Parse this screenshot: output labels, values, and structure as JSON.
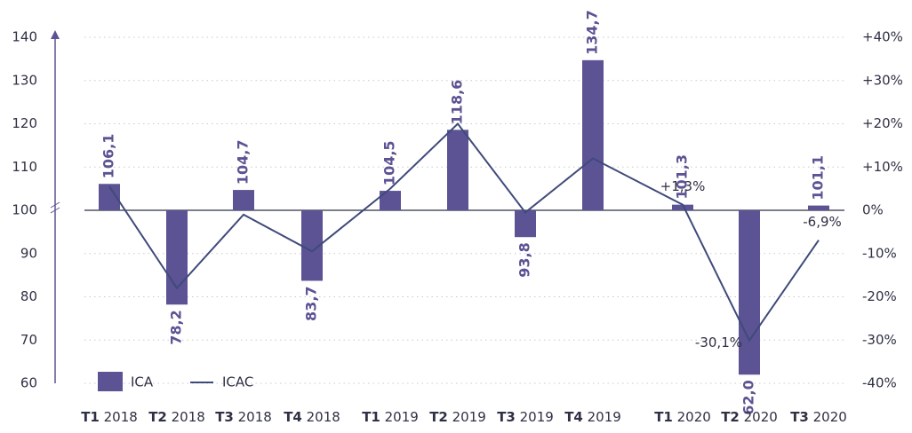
{
  "chart_data": {
    "type": "bar",
    "categories": [
      "T1 2018",
      "T2 2018",
      "T3 2018",
      "T4 2018",
      "T1 2019",
      "T2 2019",
      "T3 2019",
      "T4 2019",
      "T1 2020",
      "T2 2020",
      "T3 2020"
    ],
    "series": [
      {
        "name": "ICA",
        "color": "#5b5393",
        "values": [
          106.1,
          78.2,
          104.7,
          83.7,
          104.5,
          118.6,
          93.8,
          134.7,
          101.3,
          62.0,
          101.1
        ],
        "value_labels": [
          "106,1",
          "78,2",
          "104,7",
          "83,7",
          "104,5",
          "118,6",
          "93,8",
          "134,7",
          "101,3",
          "62,0",
          "101,1"
        ]
      },
      {
        "name": "ICAC",
        "color": "#3f4a7a",
        "axis": "y2",
        "type": "line",
        "values": [
          5.5,
          -18,
          -1,
          -9.5,
          5,
          20,
          -0.5,
          12,
          1.3,
          -30.1,
          -6.9
        ],
        "value_labels": [
          null,
          null,
          null,
          null,
          null,
          null,
          null,
          null,
          "+1,3%",
          "-30,1%",
          "-6,9%"
        ]
      }
    ],
    "ylim": [
      60,
      140
    ],
    "yticks": [
      60,
      70,
      80,
      90,
      100,
      110,
      120,
      130,
      140
    ],
    "y2lim": [
      -40,
      40
    ],
    "y2ticks": [
      {
        "value": 40,
        "label": "+40%"
      },
      {
        "value": 30,
        "label": "+30%"
      },
      {
        "value": 20,
        "label": "+20%"
      },
      {
        "value": 10,
        "label": "+10%"
      },
      {
        "value": 0,
        "label": "0%"
      },
      {
        "value": -10,
        "label": "-10%"
      },
      {
        "value": -20,
        "label": "-20%"
      },
      {
        "value": -30,
        "label": "-30%"
      },
      {
        "value": -40,
        "label": "-40%"
      }
    ],
    "baseline": 100,
    "grid": true
  }
}
